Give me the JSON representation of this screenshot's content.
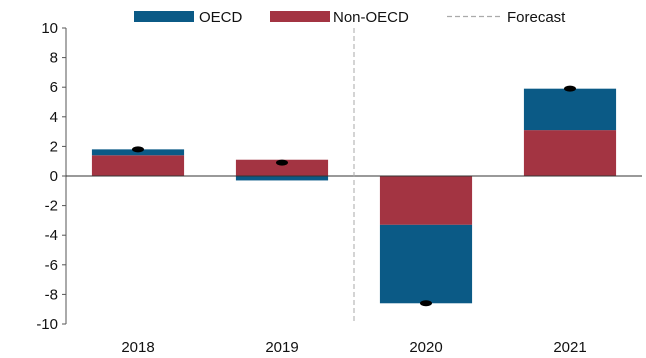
{
  "chart_data": {
    "type": "bar",
    "stacked": true,
    "categories": [
      "2018",
      "2019",
      "2020",
      "2021"
    ],
    "series": [
      {
        "name": "OECD",
        "color": "#0b5a86",
        "values": [
          0.4,
          -0.3,
          -5.3,
          2.8
        ]
      },
      {
        "name": "Non-OECD",
        "color": "#a33442",
        "values": [
          1.4,
          1.1,
          -3.3,
          3.1
        ]
      }
    ],
    "totals": [
      1.8,
      0.9,
      -8.6,
      5.9
    ],
    "forecast_label": "Forecast",
    "forecast_from": "2020",
    "ylim": [
      -10,
      10
    ],
    "yticks": [
      -10,
      -8,
      -6,
      -4,
      -2,
      0,
      2,
      4,
      6,
      8,
      10
    ],
    "legend_position": "top",
    "grid": false
  }
}
